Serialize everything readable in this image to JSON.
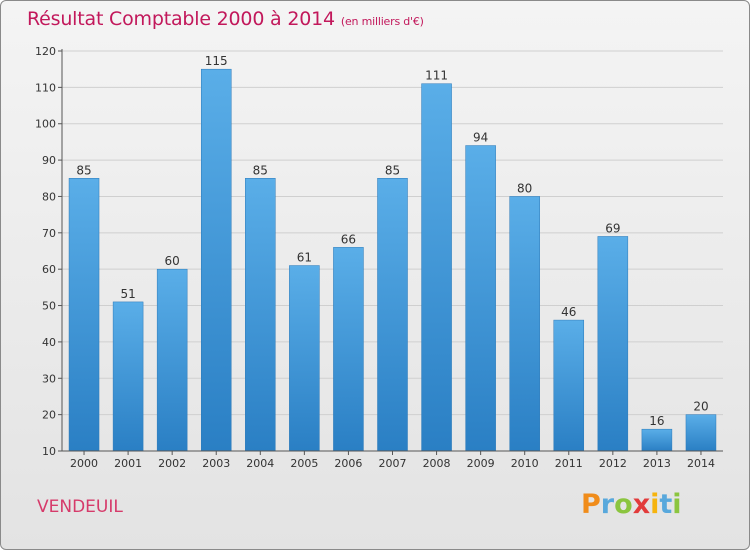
{
  "header": {
    "title": "Résultat Comptable 2000 à 2014",
    "subtitle": "(en milliers d'€)"
  },
  "footer": {
    "commune": "VENDEUIL",
    "brand": "Proxiti"
  },
  "colors": {
    "title": "#c2185b",
    "bar_top": "#5aaee8",
    "bar_bottom": "#2a7fc4",
    "brand_letters": [
      "#f08c1a",
      "#58a8dc",
      "#8bc53f",
      "#e23b3b",
      "#f6b40e",
      "#58a8dc",
      "#8bc53f"
    ]
  },
  "chart_data": {
    "type": "bar",
    "title": "Résultat Comptable 2000 à 2014",
    "subtitle": "(en milliers d'€)",
    "xlabel": "",
    "ylabel": "",
    "ylim": [
      10,
      120
    ],
    "yticks": [
      10,
      20,
      30,
      40,
      50,
      60,
      70,
      80,
      90,
      100,
      110,
      120
    ],
    "grid": true,
    "categories": [
      "2000",
      "2001",
      "2002",
      "2003",
      "2004",
      "2005",
      "2006",
      "2007",
      "2008",
      "2009",
      "2010",
      "2011",
      "2012",
      "2013",
      "2014"
    ],
    "values": [
      85,
      51,
      60,
      115,
      85,
      61,
      66,
      85,
      111,
      94,
      80,
      46,
      69,
      16,
      20
    ]
  }
}
